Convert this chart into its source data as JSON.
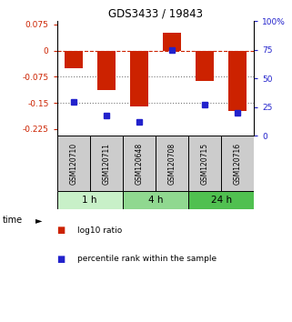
{
  "title": "GDS3433 / 19843",
  "samples": [
    "GSM120710",
    "GSM120711",
    "GSM120648",
    "GSM120708",
    "GSM120715",
    "GSM120716"
  ],
  "log10_ratio": [
    -0.05,
    -0.113,
    -0.16,
    0.05,
    -0.088,
    -0.172
  ],
  "percentile_rank": [
    30,
    18,
    12,
    75,
    27,
    20
  ],
  "time_groups": [
    {
      "label": "1 h",
      "start": 0,
      "end": 2,
      "color": "#c8f0c8"
    },
    {
      "label": "4 h",
      "start": 2,
      "end": 4,
      "color": "#90d890"
    },
    {
      "label": "24 h",
      "start": 4,
      "end": 6,
      "color": "#50c050"
    }
  ],
  "bar_color": "#cc2200",
  "dot_color": "#2222cc",
  "ylim_left": [
    -0.245,
    0.085
  ],
  "ylim_right": [
    0,
    100
  ],
  "yticks_left": [
    0.075,
    0,
    -0.075,
    -0.15,
    -0.225
  ],
  "yticks_right": [
    100,
    75,
    50,
    25,
    0
  ],
  "hlines": [
    0,
    -0.075,
    -0.15
  ],
  "hline_styles": [
    "--",
    ":",
    ":"
  ],
  "hline_colors": [
    "#cc2200",
    "#777777",
    "#777777"
  ],
  "bar_width": 0.55,
  "sample_bg_color": "#cccccc",
  "legend_items": [
    {
      "color": "#cc2200",
      "label": "log10 ratio"
    },
    {
      "color": "#2222cc",
      "label": "percentile rank within the sample"
    }
  ]
}
